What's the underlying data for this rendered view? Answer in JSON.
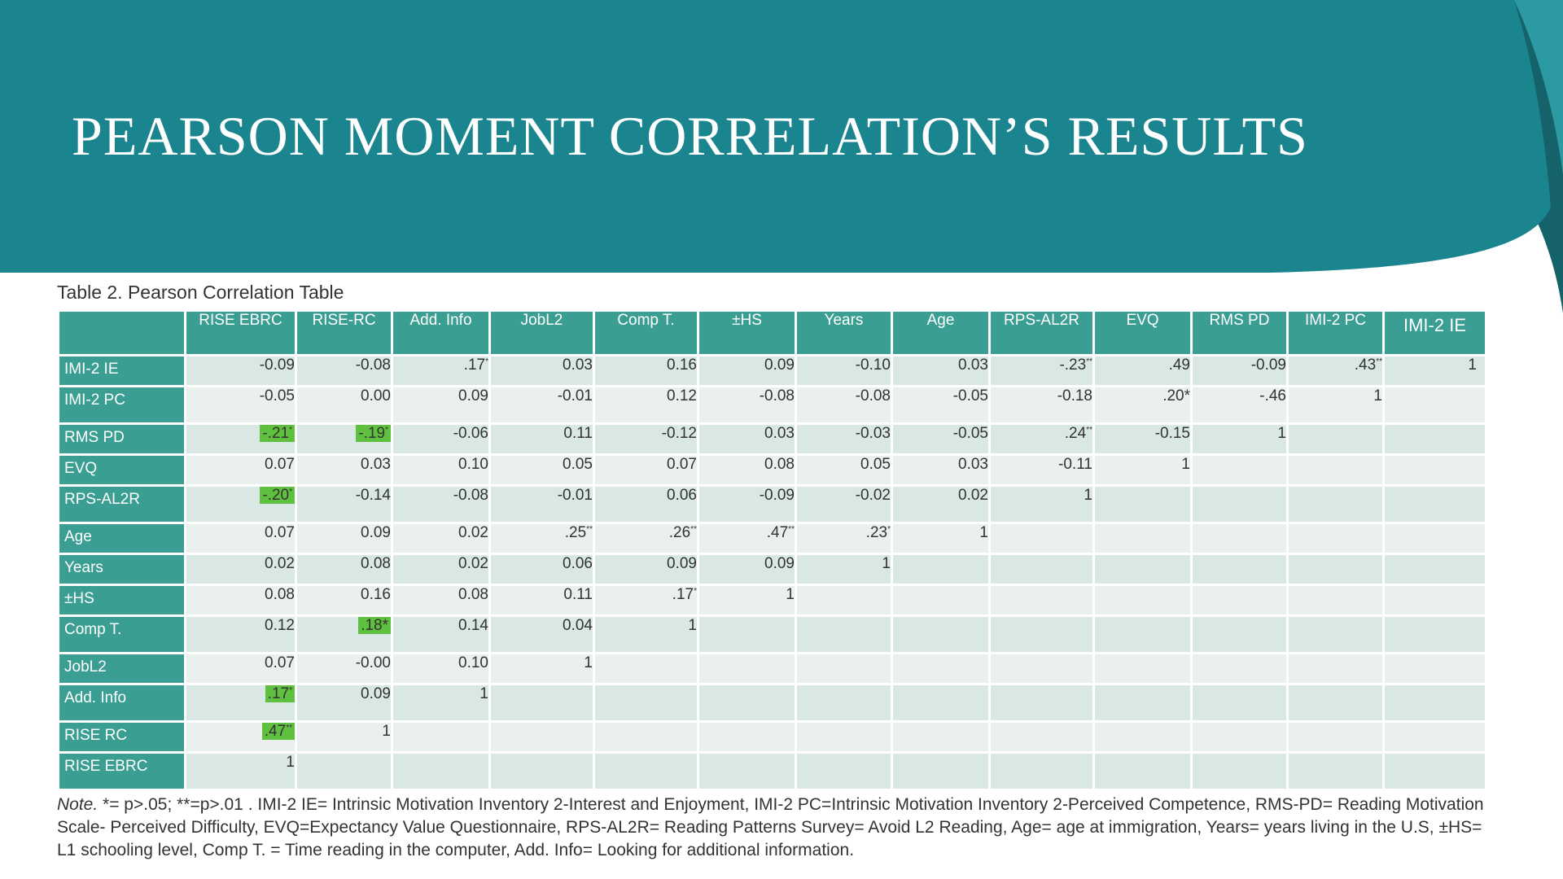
{
  "slide": {
    "title": "PEARSON MOMENT CORRELATION’S RESULTS",
    "colors": {
      "header_band": "#1a858e",
      "curve_dark": "#15626a",
      "table_header": "#3a9e92",
      "highlight": "#5fbf3f"
    }
  },
  "table": {
    "caption": "Table 2. Pearson Correlation Table",
    "columns": [
      "RISE EBRC",
      "RISE-RC",
      "Add. Info",
      "JobL2",
      "Comp T.",
      "±HS",
      "Years",
      "Age",
      "RPS-AL2R",
      "EVQ",
      "RMS PD",
      "IMI-2 PC",
      "IMI-2 IE"
    ],
    "rows": [
      {
        "label": "IMI-2 IE",
        "cells": [
          {
            "v": "-0.09"
          },
          {
            "v": "-0.08"
          },
          {
            "v": ".17",
            "sup": "*"
          },
          {
            "v": "0.03"
          },
          {
            "v": "0.16"
          },
          {
            "v": "0.09"
          },
          {
            "v": "-0.10"
          },
          {
            "v": "0.03"
          },
          {
            "v": "-.23",
            "sup": "**"
          },
          {
            "v": ".49"
          },
          {
            "v": "-0.09"
          },
          {
            "v": ".43",
            "sup": "**"
          },
          {
            "v": "1"
          }
        ]
      },
      {
        "label": "IMI-2 PC",
        "cells": [
          {
            "v": "-0.05"
          },
          {
            "v": "0.00"
          },
          {
            "v": "0.09"
          },
          {
            "v": "-0.01"
          },
          {
            "v": "0.12"
          },
          {
            "v": "-0.08"
          },
          {
            "v": "-0.08"
          },
          {
            "v": "-0.05"
          },
          {
            "v": "-0.18"
          },
          {
            "v": ".20*"
          },
          {
            "v": "-.46"
          },
          {
            "v": "1"
          },
          {
            "v": ""
          }
        ]
      },
      {
        "label": "RMS PD",
        "cells": [
          {
            "v": "-.21",
            "sup": "*",
            "hl": true
          },
          {
            "v": "-.19",
            "sup": "*",
            "hl": true
          },
          {
            "v": "-0.06"
          },
          {
            "v": "0.11"
          },
          {
            "v": "-0.12"
          },
          {
            "v": "0.03"
          },
          {
            "v": "-0.03"
          },
          {
            "v": "-0.05"
          },
          {
            "v": ".24",
            "sup": "**"
          },
          {
            "v": "-0.15"
          },
          {
            "v": "1"
          },
          {
            "v": ""
          },
          {
            "v": ""
          }
        ]
      },
      {
        "label": "EVQ",
        "cells": [
          {
            "v": "0.07"
          },
          {
            "v": "0.03"
          },
          {
            "v": "0.10"
          },
          {
            "v": "0.05"
          },
          {
            "v": "0.07"
          },
          {
            "v": "0.08"
          },
          {
            "v": "0.05"
          },
          {
            "v": "0.03"
          },
          {
            "v": "-0.11"
          },
          {
            "v": "1"
          },
          {
            "v": ""
          },
          {
            "v": ""
          },
          {
            "v": ""
          }
        ]
      },
      {
        "label": "RPS-AL2R",
        "cells": [
          {
            "v": "-.20",
            "sup": "*",
            "hl": true
          },
          {
            "v": "-0.14"
          },
          {
            "v": "-0.08"
          },
          {
            "v": "-0.01"
          },
          {
            "v": "0.06"
          },
          {
            "v": "-0.09"
          },
          {
            "v": "-0.02"
          },
          {
            "v": "0.02"
          },
          {
            "v": "1"
          },
          {
            "v": ""
          },
          {
            "v": ""
          },
          {
            "v": ""
          },
          {
            "v": ""
          }
        ]
      },
      {
        "label": "Age",
        "cells": [
          {
            "v": "0.07"
          },
          {
            "v": "0.09"
          },
          {
            "v": "0.02"
          },
          {
            "v": ".25",
            "sup": "**"
          },
          {
            "v": ".26",
            "sup": "**"
          },
          {
            "v": ".47",
            "sup": "**"
          },
          {
            "v": ".23",
            "sup": "*"
          },
          {
            "v": "1"
          },
          {
            "v": ""
          },
          {
            "v": ""
          },
          {
            "v": ""
          },
          {
            "v": ""
          },
          {
            "v": ""
          }
        ]
      },
      {
        "label": "Years",
        "cells": [
          {
            "v": "0.02"
          },
          {
            "v": "0.08"
          },
          {
            "v": "0.02"
          },
          {
            "v": "0.06"
          },
          {
            "v": "0.09"
          },
          {
            "v": "0.09"
          },
          {
            "v": "1"
          },
          {
            "v": ""
          },
          {
            "v": ""
          },
          {
            "v": ""
          },
          {
            "v": ""
          },
          {
            "v": ""
          },
          {
            "v": ""
          }
        ]
      },
      {
        "label": "±HS",
        "cells": [
          {
            "v": "0.08"
          },
          {
            "v": "0.16"
          },
          {
            "v": "0.08"
          },
          {
            "v": "0.11"
          },
          {
            "v": ".17",
            "sup": "*"
          },
          {
            "v": "1"
          },
          {
            "v": ""
          },
          {
            "v": ""
          },
          {
            "v": ""
          },
          {
            "v": ""
          },
          {
            "v": ""
          },
          {
            "v": ""
          },
          {
            "v": ""
          }
        ]
      },
      {
        "label": "Comp T.",
        "cells": [
          {
            "v": "0.12"
          },
          {
            "v": ".18*",
            "hl": true
          },
          {
            "v": "0.14"
          },
          {
            "v": "0.04"
          },
          {
            "v": "1"
          },
          {
            "v": ""
          },
          {
            "v": ""
          },
          {
            "v": ""
          },
          {
            "v": ""
          },
          {
            "v": ""
          },
          {
            "v": ""
          },
          {
            "v": ""
          },
          {
            "v": ""
          }
        ]
      },
      {
        "label": "JobL2",
        "cells": [
          {
            "v": "0.07"
          },
          {
            "v": "-0.00"
          },
          {
            "v": "0.10"
          },
          {
            "v": "1"
          },
          {
            "v": ""
          },
          {
            "v": ""
          },
          {
            "v": ""
          },
          {
            "v": ""
          },
          {
            "v": ""
          },
          {
            "v": ""
          },
          {
            "v": ""
          },
          {
            "v": ""
          },
          {
            "v": ""
          }
        ]
      },
      {
        "label": "Add. Info",
        "cells": [
          {
            "v": ".17",
            "sup": "*",
            "hl": true
          },
          {
            "v": "0.09"
          },
          {
            "v": "1"
          },
          {
            "v": ""
          },
          {
            "v": ""
          },
          {
            "v": ""
          },
          {
            "v": ""
          },
          {
            "v": ""
          },
          {
            "v": ""
          },
          {
            "v": ""
          },
          {
            "v": ""
          },
          {
            "v": ""
          },
          {
            "v": ""
          }
        ]
      },
      {
        "label": "RISE RC",
        "cells": [
          {
            "v": ".47",
            "sup": "**",
            "hl": true
          },
          {
            "v": "1"
          },
          {
            "v": ""
          },
          {
            "v": ""
          },
          {
            "v": ""
          },
          {
            "v": ""
          },
          {
            "v": ""
          },
          {
            "v": ""
          },
          {
            "v": ""
          },
          {
            "v": ""
          },
          {
            "v": ""
          },
          {
            "v": ""
          },
          {
            "v": ""
          }
        ]
      },
      {
        "label": "RISE EBRC",
        "cells": [
          {
            "v": "1"
          },
          {
            "v": ""
          },
          {
            "v": ""
          },
          {
            "v": ""
          },
          {
            "v": ""
          },
          {
            "v": ""
          },
          {
            "v": ""
          },
          {
            "v": ""
          },
          {
            "v": ""
          },
          {
            "v": ""
          },
          {
            "v": ""
          },
          {
            "v": ""
          },
          {
            "v": ""
          }
        ]
      }
    ]
  },
  "note": {
    "label": "Note.",
    "text": " *= p>.05; **=p>.01 . IMI-2 IE= Intrinsic Motivation Inventory 2-Interest and Enjoyment,  IMI-2 PC=Intrinsic Motivation Inventory 2-Perceived Competence,  RMS-PD= Reading Motivation Scale- Perceived Difficulty, EVQ=Expectancy Value Questionnaire, RPS-AL2R= Reading Patterns Survey= Avoid L2 Reading, Age= age at immigration, Years= years living in the U.S, ±HS= L1 schooling level, Comp T. = Time reading in the computer, Add. Info= Looking for additional information."
  }
}
